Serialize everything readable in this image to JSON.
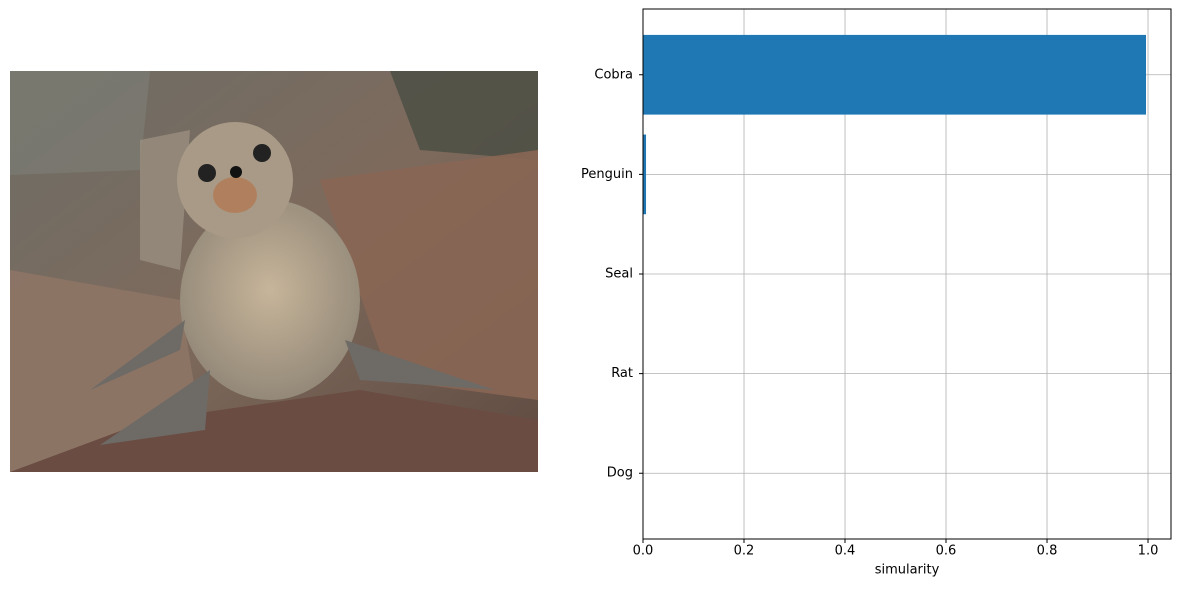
{
  "chart_data": {
    "type": "barh",
    "xlabel": "simularity",
    "categories": [
      "Dog",
      "Rat",
      "Seal",
      "Penguin",
      "Cobra"
    ],
    "values": [
      0,
      0,
      0,
      0.006,
      0.996
    ],
    "color": "#1f77b4",
    "xlim": [
      0,
      1.0455
    ],
    "xticks": [
      {
        "value": 0,
        "label": "0.0"
      },
      0.2,
      0.4,
      0.6,
      0.8,
      {
        "value": 1,
        "label": "1.0"
      }
    ],
    "grid": true
  }
}
